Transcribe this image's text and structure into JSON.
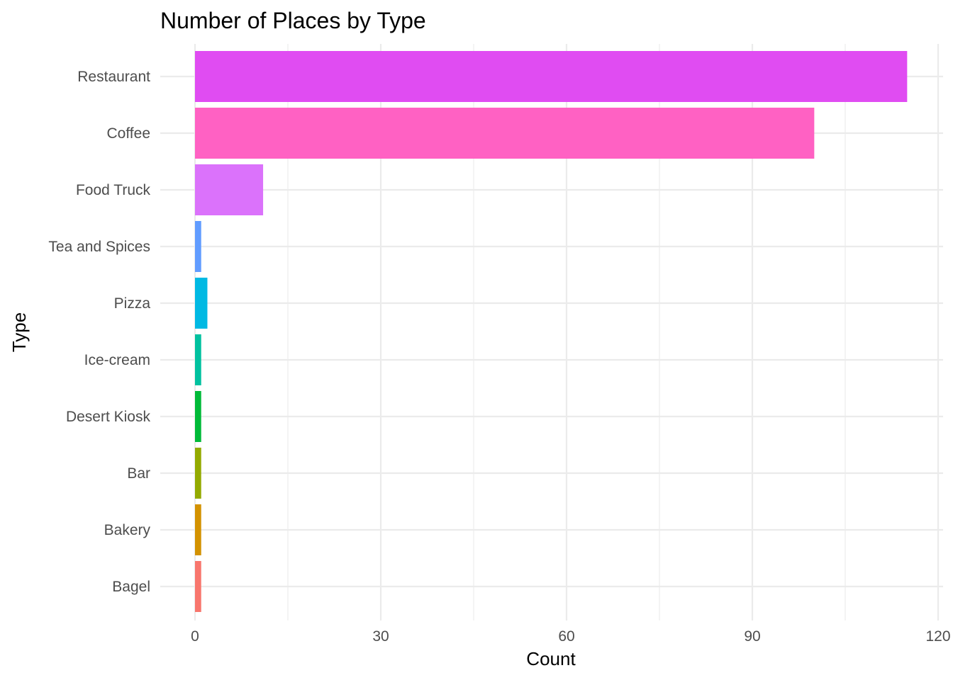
{
  "chart_data": {
    "type": "bar",
    "orientation": "horizontal",
    "title": "Number of Places by Type",
    "xlabel": "Count",
    "ylabel": "Type",
    "xlim": [
      0,
      120
    ],
    "x_ticks": [
      0,
      30,
      60,
      90,
      120
    ],
    "grid": true,
    "legend": "none",
    "categories": [
      "Bagel",
      "Bakery",
      "Bar",
      "Desert Kiosk",
      "Ice-cream",
      "Pizza",
      "Tea and Spices",
      "Food Truck",
      "Coffee",
      "Restaurant"
    ],
    "values": [
      1,
      1,
      1,
      1,
      1,
      2,
      1,
      11,
      100,
      115
    ],
    "colors": [
      "#F8766D",
      "#D89000",
      "#A3A500",
      "#39B600",
      "#00BF7D",
      "#00BFC4",
      "#00B0F6",
      "#9590FF",
      "#E76BF3",
      "#FF62BC"
    ],
    "bar_colors": [
      "#F8766D",
      "#D39200",
      "#93AA00",
      "#00BA38",
      "#00C19F",
      "#00B9E3",
      "#619CFF",
      "#DB72FB",
      "#FF61C3",
      "#E04CF2"
    ]
  }
}
